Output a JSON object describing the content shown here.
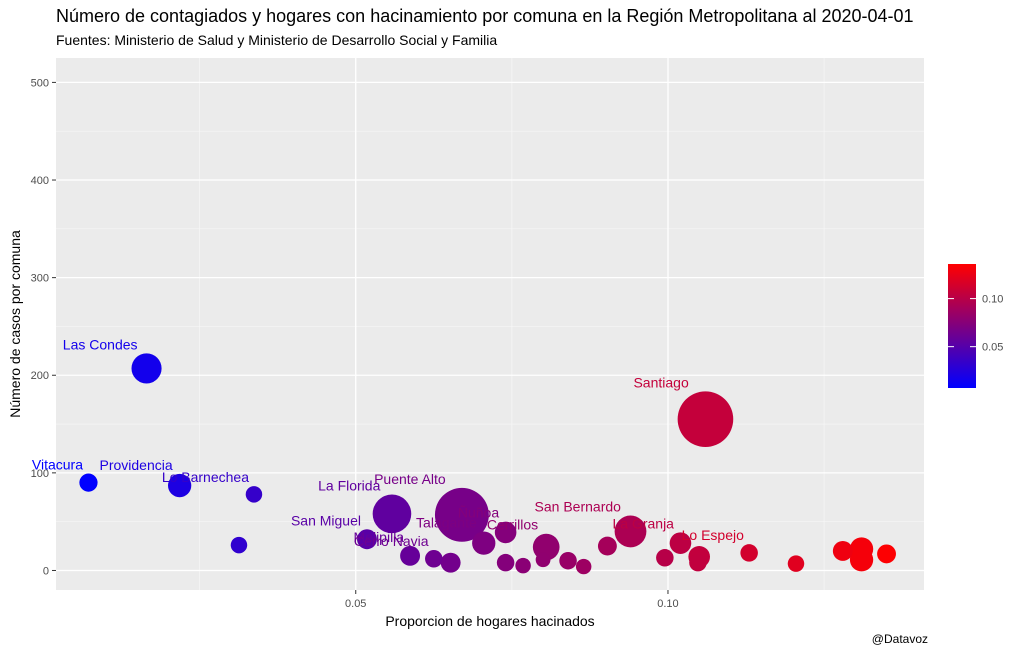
{
  "title": "Número de contagiados y hogares con hacinamiento por comuna en la Región Metropolitana al 2020-04-01",
  "subtitle": "Fuentes: Ministerio de Salud y Ministerio de Desarrollo Social y Familia",
  "caption": "@Datavoz",
  "chart_data": {
    "type": "scatter",
    "title": "Número de contagiados y hogares con hacinamiento por comuna en la Región Metropolitana al 2020-04-01",
    "subtitle": "Fuentes: Ministerio de Salud y Ministerio de Desarrollo Social y Familia",
    "xlabel": "Proporcion de hogares hacinados",
    "ylabel": "Número de casos por comuna",
    "xlim": [
      0.002,
      0.141
    ],
    "ylim": [
      -20,
      525
    ],
    "x_ticks": [
      0.05,
      0.1
    ],
    "x_tick_labels": [
      "0.05",
      "0.10"
    ],
    "y_ticks": [
      0,
      100,
      200,
      300,
      400,
      500
    ],
    "y_tick_labels": [
      "0",
      "100",
      "200",
      "300",
      "400",
      "500"
    ],
    "grid": true,
    "color_scale": {
      "low_color": "#0000ff",
      "high_color": "#ff0000",
      "min": 0.007,
      "max": 0.136,
      "breaks": [
        0.05,
        0.1
      ],
      "break_labels": [
        "0.05",
        "0.10"
      ],
      "legend_position": "right"
    },
    "points": [
      {
        "x": 0.0072,
        "y": 90,
        "size": 0.3,
        "label": "Vitacura"
      },
      {
        "x": 0.0165,
        "y": 207,
        "size": 0.65,
        "label": "Las Condes"
      },
      {
        "x": 0.0218,
        "y": 87,
        "size": 0.45,
        "label": "Providencia"
      },
      {
        "x": 0.0337,
        "y": 78,
        "size": 0.25,
        "label": "Lo Barnechea"
      },
      {
        "x": 0.0313,
        "y": 26,
        "size": 0.25,
        "label": ""
      },
      {
        "x": 0.0518,
        "y": 32,
        "size": 0.35,
        "label": "San Miguel"
      },
      {
        "x": 0.0558,
        "y": 58,
        "size": 0.9,
        "label": "La Florida"
      },
      {
        "x": 0.0587,
        "y": 15,
        "size": 0.35,
        "label": "Melipilla"
      },
      {
        "x": 0.0625,
        "y": 12,
        "size": 0.28,
        "label": "Cerro Navia"
      },
      {
        "x": 0.0652,
        "y": 8,
        "size": 0.35,
        "label": ""
      },
      {
        "x": 0.067,
        "y": 57,
        "size": 1.35,
        "label": "Puente Alto"
      },
      {
        "x": 0.0705,
        "y": 28,
        "size": 0.45,
        "label": "Talagante"
      },
      {
        "x": 0.074,
        "y": 39,
        "size": 0.4,
        "label": "Ñuñoa"
      },
      {
        "x": 0.074,
        "y": 8,
        "size": 0.28,
        "label": ""
      },
      {
        "x": 0.0768,
        "y": 5,
        "size": 0.22,
        "label": ""
      },
      {
        "x": 0.08,
        "y": 11,
        "size": 0.2,
        "label": ""
      },
      {
        "x": 0.0805,
        "y": 24,
        "size": 0.55,
        "label": "Cerrillos"
      },
      {
        "x": 0.084,
        "y": 10,
        "size": 0.28,
        "label": ""
      },
      {
        "x": 0.0865,
        "y": 4,
        "size": 0.22,
        "label": ""
      },
      {
        "x": 0.0903,
        "y": 25,
        "size": 0.32,
        "label": ""
      },
      {
        "x": 0.094,
        "y": 40,
        "size": 0.7,
        "label": "San Bernardo"
      },
      {
        "x": 0.0995,
        "y": 13,
        "size": 0.28,
        "label": ""
      },
      {
        "x": 0.102,
        "y": 28,
        "size": 0.4,
        "label": "La Granja"
      },
      {
        "x": 0.1048,
        "y": 8,
        "size": 0.28,
        "label": ""
      },
      {
        "x": 0.105,
        "y": 14,
        "size": 0.4,
        "label": ""
      },
      {
        "x": 0.106,
        "y": 155,
        "size": 1.4,
        "label": "Santiago"
      },
      {
        "x": 0.113,
        "y": 18,
        "size": 0.28,
        "label": "Lo Espejo"
      },
      {
        "x": 0.1205,
        "y": 7,
        "size": 0.25,
        "label": ""
      },
      {
        "x": 0.128,
        "y": 20,
        "size": 0.35,
        "label": ""
      },
      {
        "x": 0.131,
        "y": 22,
        "size": 0.45,
        "label": ""
      },
      {
        "x": 0.131,
        "y": 11,
        "size": 0.45,
        "label": ""
      },
      {
        "x": 0.135,
        "y": 17,
        "size": 0.32,
        "label": ""
      }
    ]
  }
}
